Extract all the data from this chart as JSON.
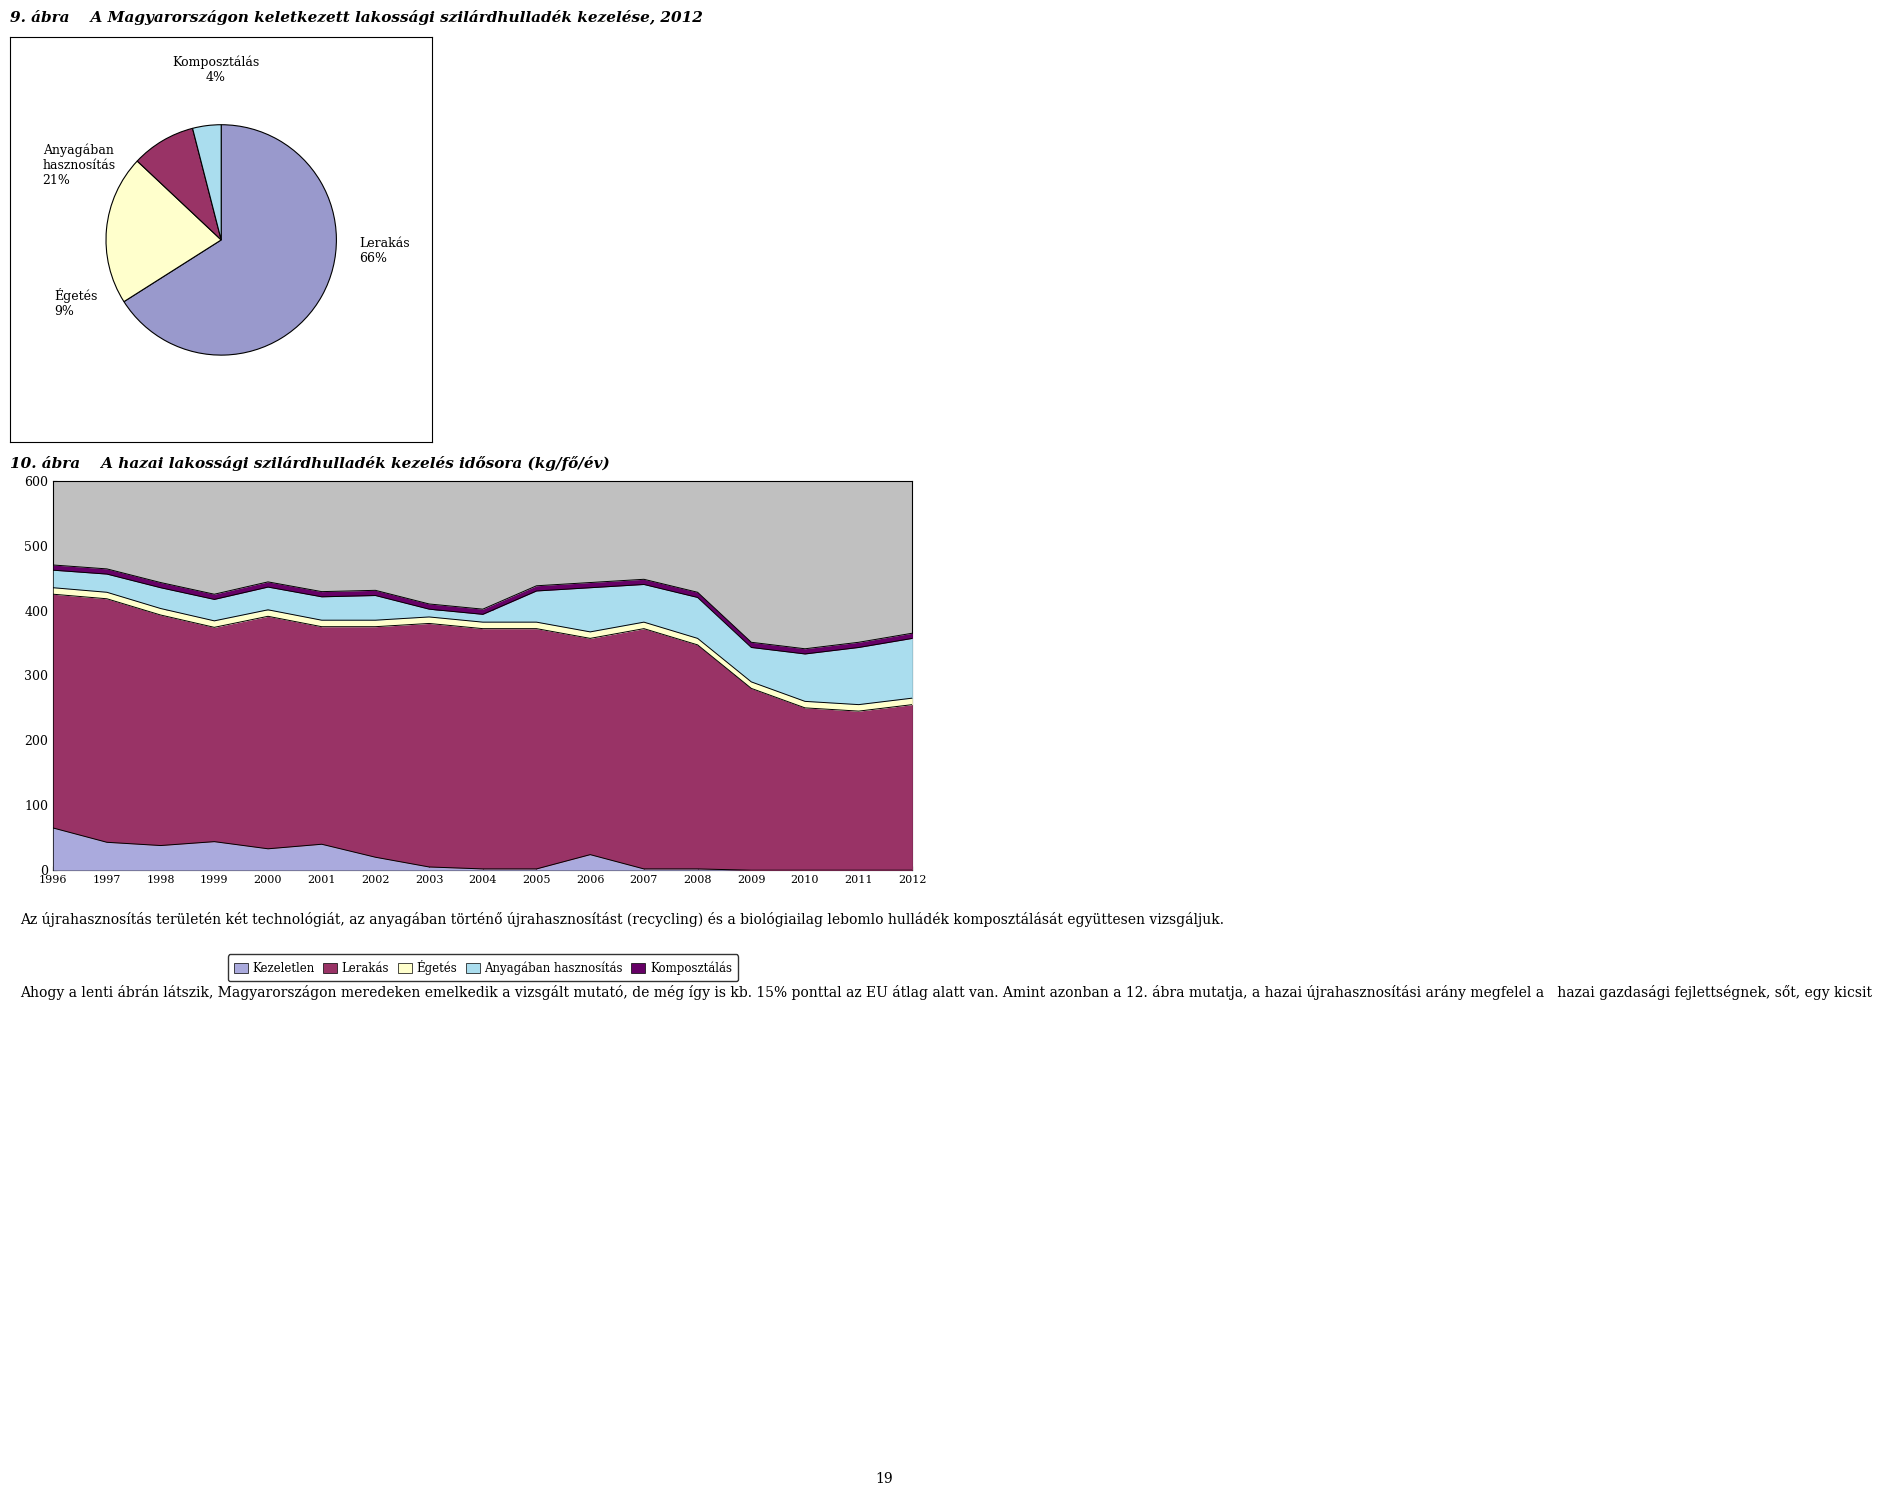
{
  "fig_title1": "9. ábra    A Magyarországon keletkezett lakossági szilárdhulladék kezelése, 2012",
  "fig_title2": "10. ábra    A hazai lakossági szilárdhulladék kezelés idősora (kg/fő/év)",
  "pie_pcts": [
    66,
    21,
    9,
    4
  ],
  "pie_colors": [
    "#9999CC",
    "#FFFFCC",
    "#993366",
    "#AADDEE"
  ],
  "years": [
    1996,
    1997,
    1998,
    1999,
    2000,
    2001,
    2002,
    2003,
    2004,
    2005,
    2006,
    2007,
    2008,
    2009,
    2010,
    2011,
    2012
  ],
  "kezeletlen": [
    65,
    43,
    38,
    44,
    33,
    40,
    20,
    5,
    2,
    2,
    24,
    2,
    2,
    0,
    0,
    0,
    0
  ],
  "lerakas": [
    360,
    375,
    355,
    330,
    358,
    335,
    355,
    375,
    370,
    370,
    333,
    370,
    345,
    280,
    250,
    245,
    255
  ],
  "egetes": [
    10,
    10,
    10,
    10,
    10,
    10,
    10,
    10,
    10,
    10,
    10,
    10,
    10,
    10,
    10,
    10,
    10
  ],
  "anyagaban": [
    27,
    28,
    32,
    33,
    35,
    36,
    38,
    12,
    12,
    48,
    68,
    58,
    63,
    53,
    73,
    88,
    92
  ],
  "komposztatas": [
    8,
    8,
    8,
    8,
    8,
    8,
    8,
    8,
    8,
    8,
    8,
    8,
    8,
    8,
    8,
    8,
    8
  ],
  "area_colors": [
    "#AAAADD",
    "#993366",
    "#FFFFCC",
    "#AADDEE",
    "#660066"
  ],
  "area_labels": [
    "Kezeletlen",
    "Lerakás",
    "Égetés",
    "Anyagában hasznosítás",
    "Komposztálás"
  ],
  "body_text_line1": "Az újrahasznosítás területén két technológiát, az anyagában történő újrahasznosítást (recycling) és a biológiailag lebomlo hulládék komposztálását együttesen vizsgáljuk.",
  "body_text_line2": "Ahogy a lenti ábrán látszik, Magyarországon meredeken emelkedik a vizsgált mutató, de még így is kb. 15% ponttal az EU átlag alatt van. Amint azonban a 12. ábra mutatja, a hazai újrahasznosítási arány megfelel a   hazai gazdasági fejlettségnek, sőt, egy kicsit",
  "page_number": "19",
  "background_color": "#FFFFFF",
  "gray_color": "#C0C0C0",
  "border_color": "#000000"
}
